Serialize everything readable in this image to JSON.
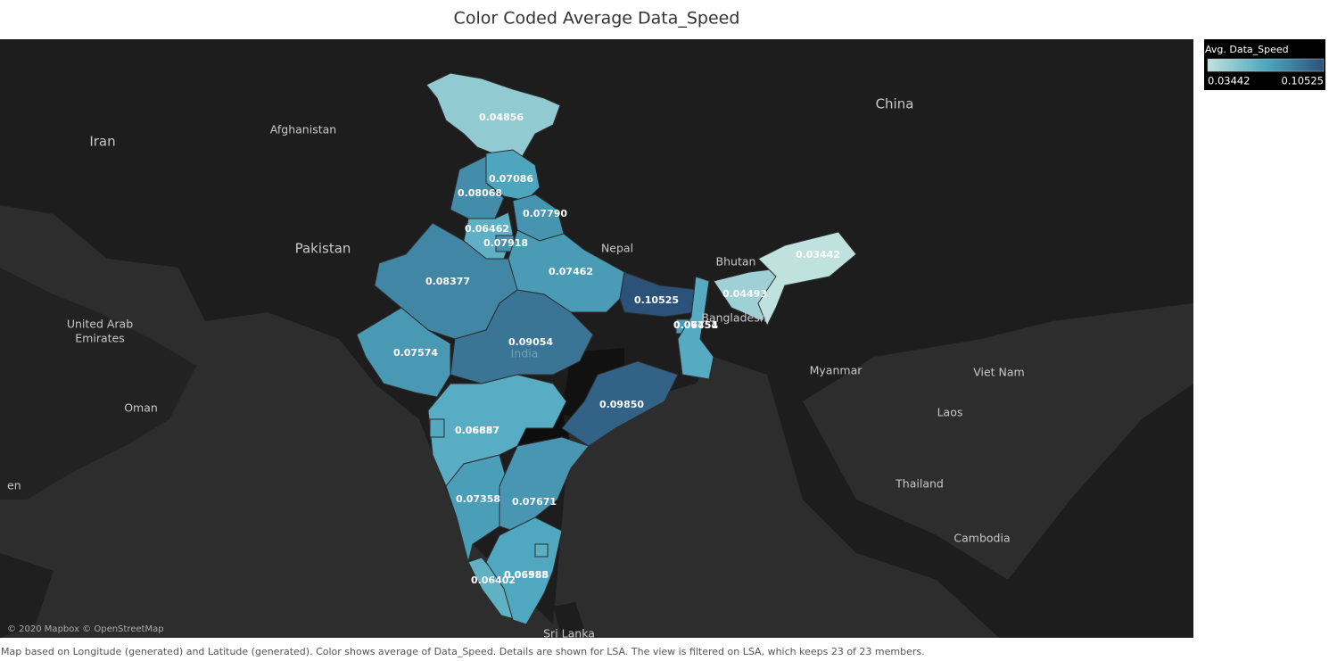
{
  "chart_data": {
    "type": "choropleth",
    "title": "Color Coded Average Data_Speed",
    "values": [
      0.04856,
      0.07086,
      0.08068,
      0.06462,
      0.07918,
      0.0779,
      0.07462,
      0.08377,
      0.07574,
      0.09054,
      0.10525,
      0.04493,
      0.03442,
      0.07451,
      0.06754,
      0.0985,
      0.06687,
      0.06857,
      0.07358,
      0.07671,
      0.06402,
      0.06985,
      0.06588
    ],
    "value_labels": [
      "0.04856",
      "0.07086",
      "0.08068",
      "0.06462",
      "0.07918",
      "0.07790",
      "0.07462",
      "0.08377",
      "0.07574",
      "0.09054",
      "0.10525",
      "0.04493",
      "0.03442",
      "0.07451",
      "0.06754",
      "0.09850",
      "0.06687",
      "0.06857",
      "0.07358",
      "0.07671",
      "0.06402",
      "0.06985",
      "0.06588"
    ],
    "legend": {
      "title": "Avg. Data_Speed",
      "min": 0.03442,
      "max": 0.10525,
      "colors": [
        "#bfe2de",
        "#4fa7c0",
        "#2c5279"
      ]
    },
    "map_labels": [
      "Iran",
      "Afghanistan",
      "Pakistan",
      "China",
      "Nepal",
      "Bhutan",
      "Bangladesh",
      "Myanmar",
      "Viet Nam",
      "Laos",
      "Thailand",
      "Cambodia",
      "Oman",
      "United Arab",
      "Emirates",
      "India",
      "Sri Lanka",
      "en"
    ],
    "attribution": "© 2020 Mapbox © OpenStreetMap",
    "caption": "Map based on Longitude (generated) and Latitude (generated).  Color shows average of Data_Speed.  Details are shown for LSA. The view is filtered on LSA, which keeps 23 of 23 members."
  }
}
